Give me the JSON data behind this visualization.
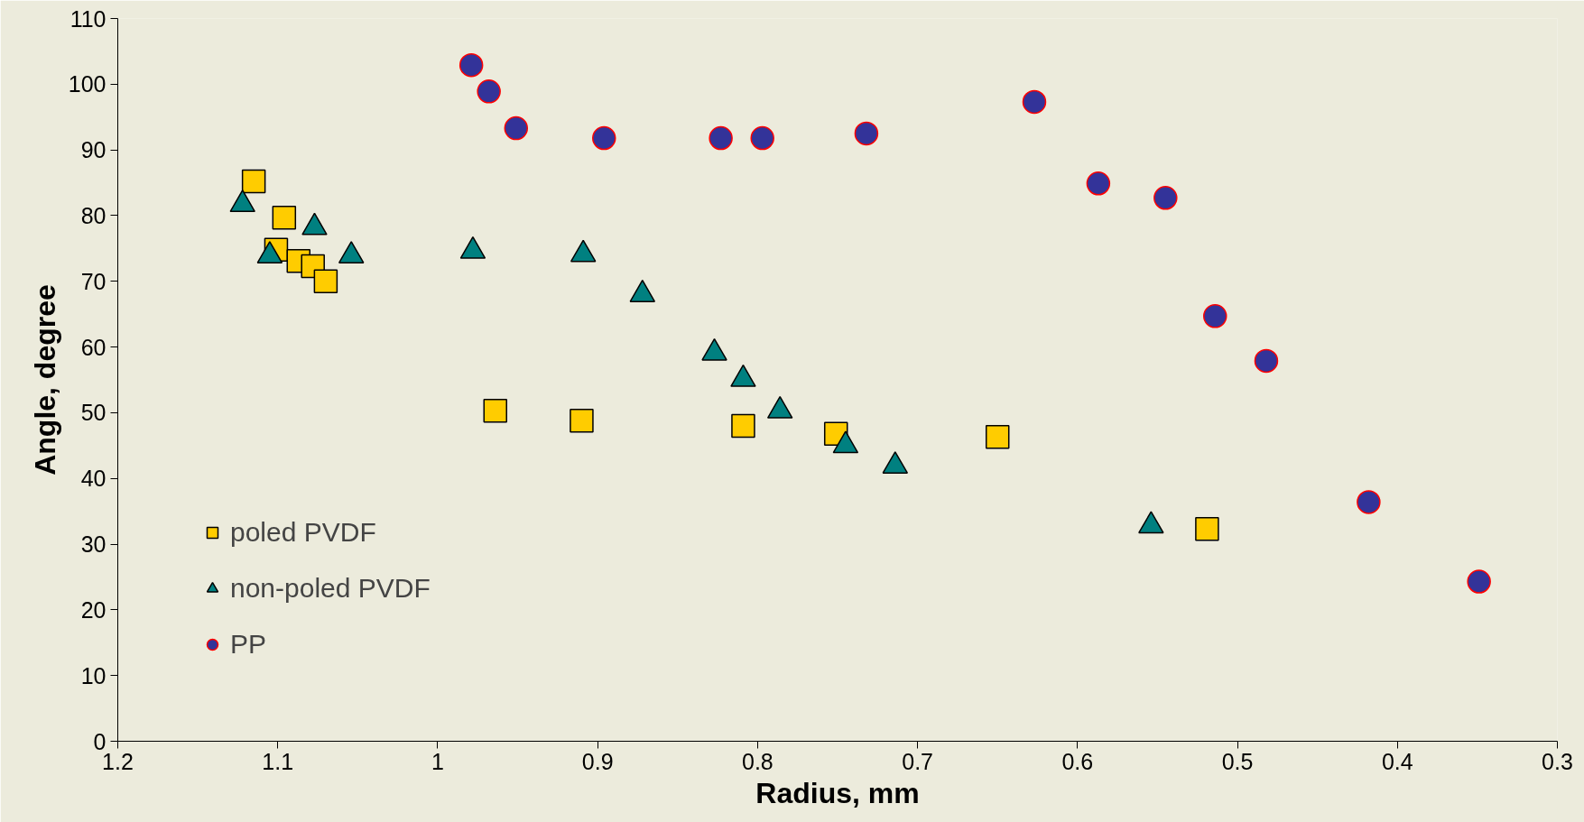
{
  "chart_data": {
    "type": "scatter",
    "xlabel": "Radius, mm",
    "ylabel": "Angle, degree",
    "xlim": [
      1.2,
      0.3
    ],
    "xticks": [
      1.2,
      1.1,
      1,
      0.9,
      0.8,
      0.7,
      0.6,
      0.5,
      0.4,
      0.3
    ],
    "ylim": [
      0,
      110
    ],
    "yticks": [
      0,
      10,
      20,
      30,
      40,
      50,
      60,
      70,
      80,
      90,
      100,
      110
    ],
    "grid": false,
    "legend": "bottom left",
    "series": [
      {
        "name": "poled PVDF",
        "color": "#ffcc00",
        "marker": "square",
        "x": [
          1.115,
          1.096,
          1.101,
          1.087,
          1.078,
          1.07,
          0.964,
          0.91,
          0.809,
          0.751,
          0.65,
          0.519
        ],
        "values": [
          85.2,
          79.7,
          74.8,
          73.1,
          72.3,
          70.0,
          50.3,
          48.8,
          48.0,
          46.8,
          46.3,
          32.3
        ]
      },
      {
        "name": "non-poled PVDF",
        "color": "#008080",
        "marker": "triangle",
        "x": [
          1.122,
          1.105,
          1.077,
          1.054,
          0.978,
          0.909,
          0.872,
          0.827,
          0.809,
          0.786,
          0.745,
          0.714,
          0.554
        ],
        "values": [
          81.7,
          73.9,
          78.2,
          73.9,
          74.6,
          74.1,
          68.0,
          59.1,
          55.1,
          50.3,
          45.0,
          41.9,
          32.8
        ]
      },
      {
        "name": "PP",
        "color": "#333399",
        "marker": "circle",
        "x": [
          0.979,
          0.968,
          0.951,
          0.896,
          0.823,
          0.797,
          0.732,
          0.627,
          0.587,
          0.545,
          0.514,
          0.482,
          0.418,
          0.349
        ],
        "values": [
          102.9,
          98.9,
          93.3,
          91.8,
          91.8,
          91.8,
          92.5,
          97.3,
          84.9,
          82.7,
          64.7,
          57.9,
          36.4,
          24.3
        ]
      }
    ]
  }
}
